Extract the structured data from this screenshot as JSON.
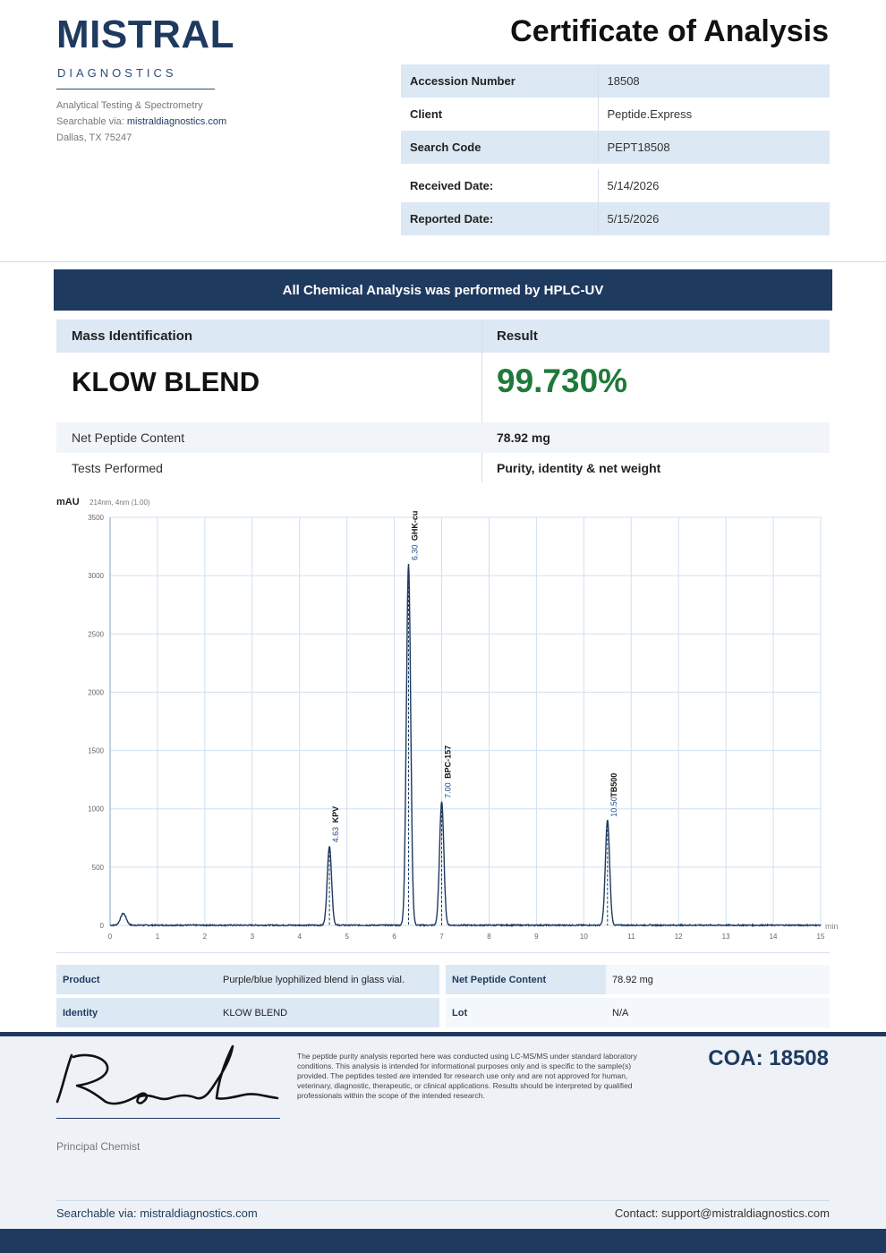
{
  "lab": {
    "name": "MISTRAL",
    "subtitle": "DIAGNOSTICS",
    "tagline": "Analytical Testing & Spectrometry",
    "searchable_prefix": "Searchable via: ",
    "searchable_link": "mistraldiagnostics.com",
    "address": "Dallas, TX 75247"
  },
  "document_title": "Certificate of Analysis",
  "info": [
    {
      "label": "Accession Number",
      "value": "18508"
    },
    {
      "label": "Client",
      "value": "Peptide.Express"
    },
    {
      "label": "Search Code",
      "value": "PEPT18508"
    },
    {
      "label": "Received Date:",
      "value": "5/14/2026"
    },
    {
      "label": "Reported Date:",
      "value": "5/15/2026"
    }
  ],
  "banner": "All Chemical Analysis was performed by HPLC-UV",
  "results": {
    "col1_header": "Mass Identification",
    "col2_header": "Result",
    "analyte": "KLOW BLEND",
    "purity": "99.730%",
    "net_content_label": "Net Peptide Content",
    "net_content_value": "78.92 mg",
    "tests_label": "Tests Performed",
    "tests_value": "Purity, identity & net weight"
  },
  "chart_data": {
    "type": "line",
    "ylabel": "mAU",
    "subtitle": "214nm, 4nm (1.00)",
    "xunit": "min",
    "xlim": [
      0,
      15
    ],
    "ylim": [
      0,
      3500
    ],
    "xticks": [
      0,
      1,
      2,
      3,
      4,
      5,
      6,
      7,
      8,
      9,
      10,
      11,
      12,
      13,
      14,
      15
    ],
    "yticks": [
      0,
      500,
      1000,
      1500,
      2000,
      2500,
      3000,
      3500
    ],
    "grid": true,
    "peaks": [
      {
        "time": 0.28,
        "height": 100,
        "time_label": "",
        "name": ""
      },
      {
        "time": 4.63,
        "height": 680,
        "time_label": "4.63",
        "name": "KPV"
      },
      {
        "time": 6.3,
        "height": 3100,
        "time_label": "6.30",
        "name": "GHK-cu"
      },
      {
        "time": 7.0,
        "height": 1060,
        "time_label": "7.00",
        "name": "BPC-157"
      },
      {
        "time": 10.5,
        "height": 900,
        "time_label": "10.50",
        "name": "TB500"
      }
    ]
  },
  "product_table": {
    "product_label": "Product",
    "product_value": "Purple/blue lyophilized blend in glass vial.",
    "identity_label": "Identity",
    "identity_value": "KLOW BLEND",
    "npc_label": "Net Peptide Content",
    "npc_value": "78.92 mg",
    "lot_label": "Lot",
    "lot_value": "N/A"
  },
  "footer": {
    "signer_title": "Principal Chemist",
    "disclaimer": "The peptide purity analysis reported here was conducted using LC-MS/MS under standard laboratory conditions. This analysis is intended for informational purposes only and is specific to the sample(s) provided. The peptides tested are intended for research use only and are not approved for human, veterinary, diagnostic, therapeutic, or clinical applications. Results should be interpreted by qualified professionals within the scope of the intended research.",
    "coa_number": "COA: 18508",
    "searchable": "Searchable via: mistraldiagnostics.com",
    "contact": "Contact: support@mistraldiagnostics.com"
  },
  "colors": {
    "navy": "#1f3a5f",
    "light_blue": "#dde8f5",
    "green": "#1f7a3a"
  }
}
